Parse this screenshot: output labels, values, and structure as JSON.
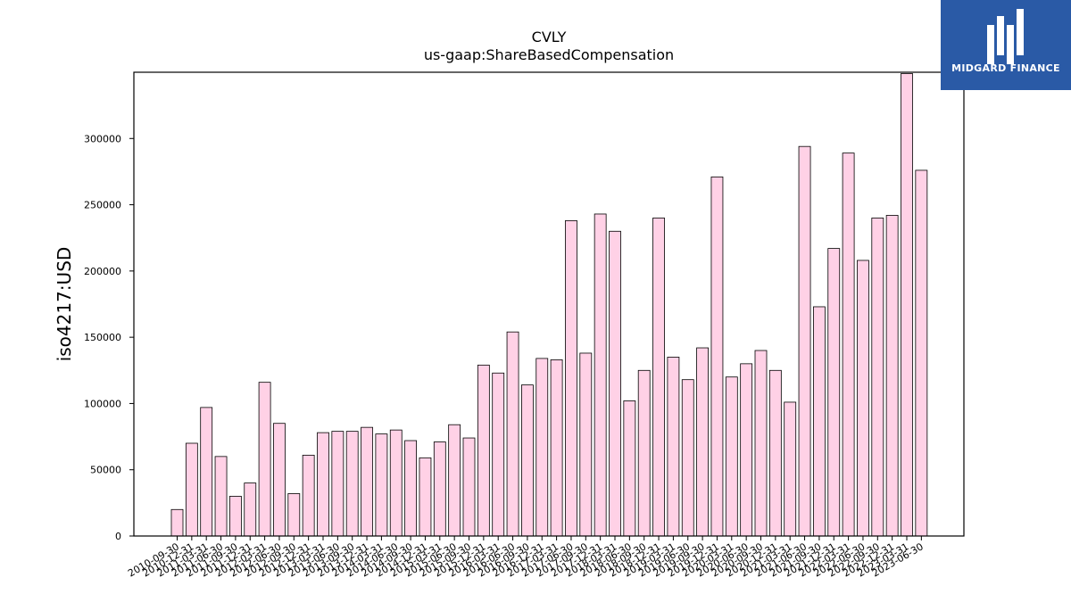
{
  "logo": {
    "text": "MIDGARD FINANCE",
    "bg_color": "#2a5aa6"
  },
  "chart_data": {
    "type": "bar",
    "title": "CVLY",
    "subtitle": "us-gaap:ShareBasedCompensation",
    "xlabel": "",
    "ylabel": "iso4217:USD",
    "ylim": [
      0,
      350000
    ],
    "yticks": [
      0,
      50000,
      100000,
      150000,
      200000,
      250000,
      300000
    ],
    "bar_color": "#ffd1e6",
    "edge_color": "#000000",
    "grid": false,
    "categories": [
      "2010-09-30",
      "2010-12-31",
      "2011-03-31",
      "2011-06-30",
      "2011-09-30",
      "2011-12-31",
      "2012-03-31",
      "2012-06-30",
      "2012-09-30",
      "2012-12-31",
      "2013-03-31",
      "2013-06-30",
      "2013-09-30",
      "2013-12-31",
      "2014-03-31",
      "2014-06-30",
      "2014-09-30",
      "2014-12-31",
      "2015-03-31",
      "2015-06-30",
      "2015-09-30",
      "2015-12-31",
      "2016-03-31",
      "2016-06-30",
      "2016-09-30",
      "2016-12-31",
      "2017-03-31",
      "2017-06-30",
      "2017-09-30",
      "2017-12-31",
      "2018-03-31",
      "2018-06-30",
      "2018-09-30",
      "2018-12-31",
      "2019-03-31",
      "2019-06-30",
      "2019-09-30",
      "2019-12-31",
      "2020-03-31",
      "2020-06-30",
      "2020-09-30",
      "2020-12-31",
      "2021-03-31",
      "2021-06-30",
      "2021-09-30",
      "2021-12-31",
      "2022-03-31",
      "2022-06-30",
      "2022-09-30",
      "2022-12-31",
      "2023-03-31",
      "2023-06-30"
    ],
    "values": [
      20000,
      70000,
      97000,
      60000,
      30000,
      40000,
      116000,
      85000,
      32000,
      61000,
      78000,
      79000,
      79000,
      82000,
      77000,
      80000,
      72000,
      59000,
      71000,
      84000,
      74000,
      129000,
      123000,
      154000,
      114000,
      134000,
      133000,
      238000,
      138000,
      243000,
      230000,
      102000,
      125000,
      240000,
      135000,
      118000,
      142000,
      271000,
      120000,
      130000,
      140000,
      125000,
      101000,
      294000,
      173000,
      217000,
      289000,
      208000,
      240000,
      242000,
      349000,
      276000
    ]
  }
}
